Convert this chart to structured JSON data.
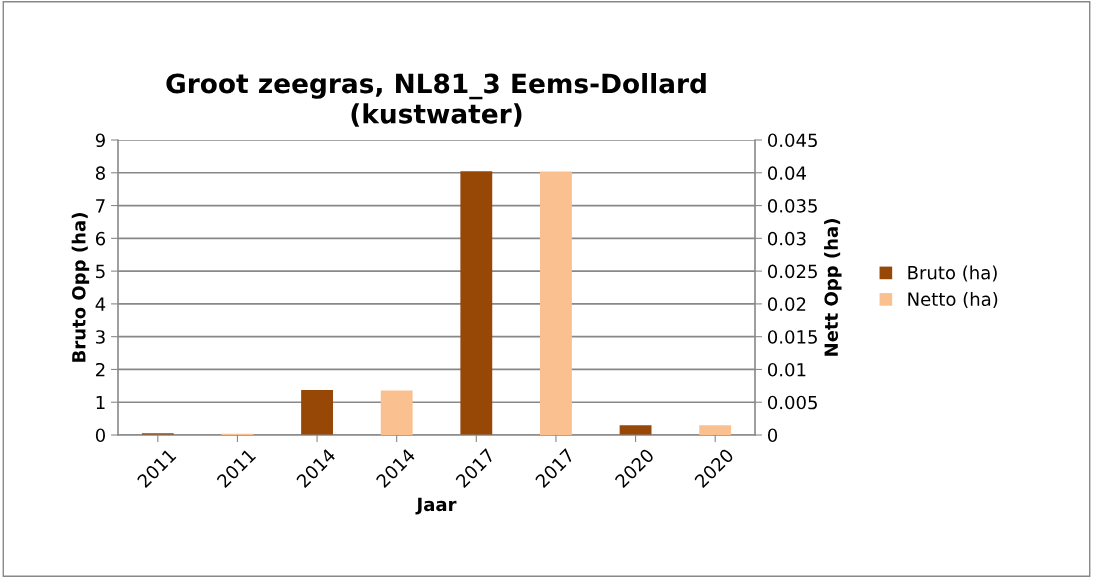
{
  "chart_data": {
    "type": "bar",
    "title": "Groot zeegras, NL81_3 Eems-Dollard\n(kustwater)",
    "xlabel": "Jaar",
    "ylabel": "Bruto Opp (ha)",
    "y2label": "Nett Opp (ha)",
    "categories": [
      "2011",
      "2011",
      "2014",
      "2014",
      "2017",
      "2017",
      "2020",
      "2020"
    ],
    "series": [
      {
        "name": "Bruto (ha)",
        "color": "#974706",
        "values": [
          0.05,
          null,
          1.37,
          null,
          8.05,
          null,
          0.3,
          null
        ]
      },
      {
        "name": "Netto (ha)",
        "color": "#fac090",
        "axis": "y2",
        "values": [
          null,
          0.0002,
          null,
          0.0068,
          null,
          0.0402,
          null,
          0.0015
        ]
      }
    ],
    "ylim": [
      0,
      9
    ],
    "yticks": [
      0,
      1,
      2,
      3,
      4,
      5,
      6,
      7,
      8,
      9
    ],
    "y2lim": [
      0,
      0.045
    ],
    "y2ticks": [
      0,
      0.005,
      0.01,
      0.015,
      0.02,
      0.025,
      0.03,
      0.035,
      0.04,
      0.045
    ],
    "grid": "y",
    "legend": "right"
  }
}
